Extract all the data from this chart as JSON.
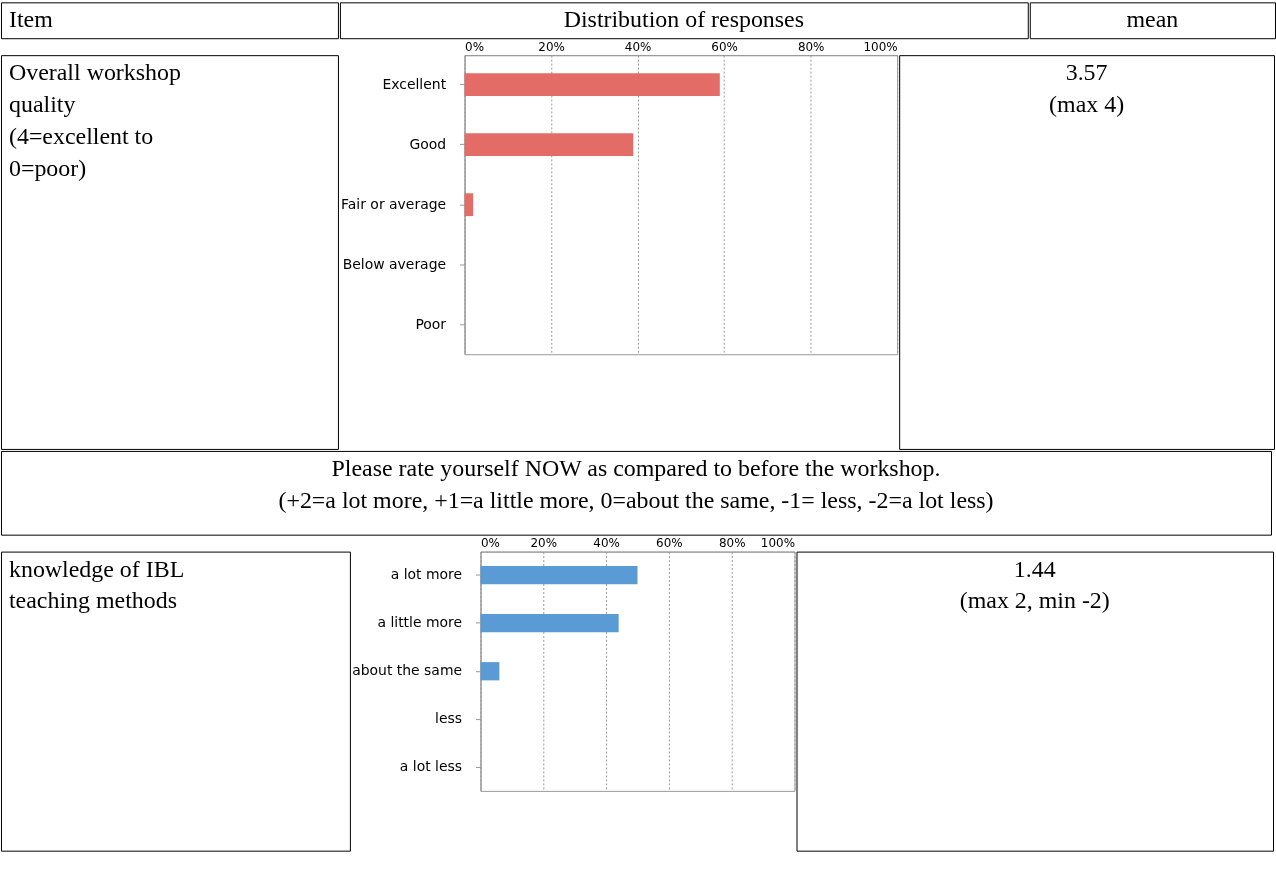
{
  "chart_data": [
    {
      "type": "bar",
      "orientation": "horizontal",
      "categories": [
        "Excellent",
        "Good",
        "Fair or average",
        "Below average",
        "Poor"
      ],
      "values": [
        59,
        39,
        2,
        0,
        0
      ],
      "color": "#e46c67",
      "xlim": [
        0,
        100
      ],
      "xticks": [
        {
          "value": 0,
          "label": "0%"
        },
        {
          "value": 20,
          "label": "20%"
        },
        {
          "value": 40,
          "label": "40%"
        },
        {
          "value": 60,
          "label": "60%"
        },
        {
          "value": 80,
          "label": "80%"
        },
        {
          "value": 100,
          "label": "100%"
        }
      ],
      "grid": "x",
      "annotations": [
        "Item",
        "Distribution of responses",
        "mean",
        "Overall workshop\nquality\n(4=excellent to\n0=poor)",
        "3.57\n(max 4)"
      ]
    },
    {
      "type": "bar",
      "orientation": "horizontal",
      "categories": [
        "a lot more",
        "a little more",
        "about the same",
        "less",
        "a lot less"
      ],
      "values": [
        50,
        44,
        6,
        0,
        0
      ],
      "color": "#5b9bd5",
      "xlim": [
        0,
        100
      ],
      "xticks": [
        {
          "value": 0,
          "label": "0%"
        },
        {
          "value": 20,
          "label": "20%"
        },
        {
          "value": 40,
          "label": "40%"
        },
        {
          "value": 60,
          "label": "60%"
        },
        {
          "value": 80,
          "label": "80%"
        },
        {
          "value": 100,
          "label": "100%"
        }
      ],
      "grid": "x",
      "annotations": [
        "Please rate yourself NOW as compared to before the workshop.\n(+2=a lot more, +1=a little more, 0=about the same, -1= less, -2=a lot less)",
        "knowledge of IBL\nteaching methods",
        "1.44\n(max 2, min -2)"
      ]
    }
  ]
}
